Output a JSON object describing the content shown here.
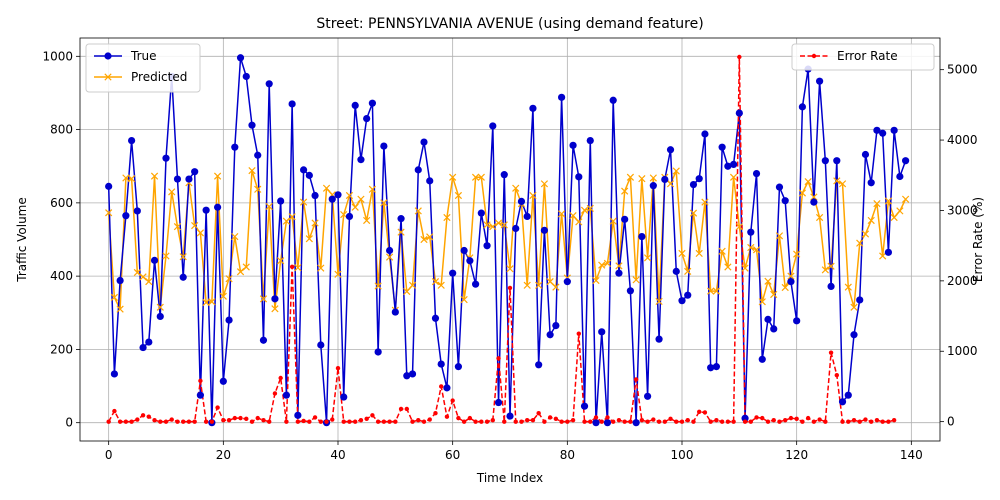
{
  "chart_data": {
    "type": "line",
    "title": "Street: PENNSYLVANIA AVENUE (using demand feature)",
    "xlabel": "Time Index",
    "ylabel": "Traffic Volume",
    "y2label": "Error Rate (%)",
    "xlim": [
      -5,
      145
    ],
    "ylim": [
      -50,
      1050
    ],
    "y2lim": [
      -275,
      5450
    ],
    "x_ticks": [
      0,
      20,
      40,
      60,
      80,
      100,
      120,
      140
    ],
    "y_ticks": [
      0,
      200,
      400,
      600,
      800,
      1000
    ],
    "y2_ticks": [
      0,
      1000,
      2000,
      3000,
      4000,
      5000
    ],
    "grid": true,
    "legend_left": "top-left",
    "legend_right": "top-right",
    "series": [
      {
        "name": "True",
        "axis": "left",
        "color": "#0000cc",
        "marker": "circle",
        "values": [
          645,
          133,
          388,
          565,
          770,
          578,
          205,
          220,
          443,
          290,
          722,
          945,
          665,
          397,
          665,
          685,
          75,
          580,
          0,
          588,
          113,
          280,
          752,
          996,
          945,
          812,
          730,
          225,
          925,
          338,
          605,
          75,
          870,
          20,
          690,
          675,
          620,
          212,
          0,
          610,
          622,
          70,
          563,
          866,
          718,
          830,
          872,
          193,
          755,
          470,
          302,
          557,
          128,
          133,
          690,
          766,
          660,
          285,
          160,
          95,
          408,
          153,
          470,
          442,
          378,
          572,
          483,
          810,
          55,
          677,
          18,
          530,
          604,
          563,
          858,
          158,
          525,
          240,
          265,
          888,
          385,
          757,
          671,
          45,
          770,
          0,
          248,
          0,
          880,
          408,
          555,
          360,
          0,
          508,
          72,
          647,
          228,
          664,
          745,
          413,
          333,
          348,
          650,
          666,
          788,
          150,
          153,
          752,
          700,
          705,
          845,
          12,
          520,
          680,
          173,
          282,
          256,
          643,
          606,
          385,
          278,
          862,
          965,
          602,
          932,
          715,
          372,
          715,
          57,
          75,
          240,
          335,
          732,
          655,
          798,
          790,
          465,
          798,
          672,
          715
        ]
      },
      {
        "name": "Predicted",
        "axis": "left",
        "color": "#ffa500",
        "marker": "x",
        "values": [
          573,
          342,
          310,
          668,
          666,
          410,
          398,
          385,
          673,
          315,
          455,
          630,
          535,
          453,
          655,
          538,
          518,
          328,
          330,
          673,
          345,
          393,
          508,
          412,
          425,
          688,
          637,
          338,
          590,
          311,
          442,
          550,
          562,
          423,
          602,
          502,
          545,
          422,
          640,
          622,
          405,
          568,
          620,
          588,
          610,
          552,
          637,
          373,
          600,
          452,
          307,
          520,
          358,
          375,
          578,
          500,
          507,
          385,
          375,
          560,
          670,
          620,
          336,
          450,
          670,
          670,
          540,
          535,
          545,
          540,
          420,
          640,
          598,
          375,
          620,
          375,
          652,
          385,
          370,
          570,
          395,
          565,
          548,
          580,
          585,
          388,
          430,
          435,
          550,
          428,
          632,
          670,
          390,
          666,
          450,
          668,
          331,
          670,
          652,
          687,
          462,
          413,
          572,
          462,
          602,
          359,
          359,
          468,
          425,
          670,
          535,
          422,
          478,
          472,
          330,
          386,
          350,
          510,
          369,
          400,
          460,
          627,
          658,
          616,
          560,
          417,
          427,
          660,
          652,
          370,
          315,
          490,
          515,
          552,
          598,
          455,
          605,
          560,
          578,
          610
        ]
      },
      {
        "name": "Error Rate",
        "axis": "right",
        "color": "#ff0000",
        "marker": "dot",
        "values": [
          0,
          150,
          0,
          0,
          0,
          30,
          90,
          70,
          20,
          0,
          0,
          30,
          0,
          0,
          0,
          0,
          580,
          0,
          0,
          200,
          20,
          20,
          50,
          50,
          40,
          0,
          50,
          20,
          0,
          400,
          620,
          0,
          2200,
          0,
          10,
          0,
          60,
          0,
          0,
          30,
          760,
          0,
          0,
          0,
          20,
          40,
          90,
          0,
          0,
          0,
          0,
          180,
          180,
          0,
          20,
          0,
          30,
          120,
          500,
          70,
          300,
          50,
          0,
          50,
          0,
          0,
          0,
          20,
          900,
          0,
          1900,
          0,
          0,
          20,
          20,
          120,
          0,
          60,
          40,
          0,
          0,
          20,
          1250,
          0,
          0,
          60,
          0,
          60,
          0,
          20,
          0,
          0,
          600,
          20,
          0,
          30,
          0,
          0,
          40,
          0,
          0,
          20,
          0,
          140,
          130,
          0,
          20,
          0,
          0,
          0,
          5180,
          0,
          0,
          60,
          50,
          0,
          20,
          0,
          20,
          50,
          40,
          0,
          50,
          0,
          30,
          0,
          980,
          660,
          0,
          0,
          20,
          0,
          30,
          0,
          20,
          0,
          0,
          20
        ]
      }
    ]
  }
}
